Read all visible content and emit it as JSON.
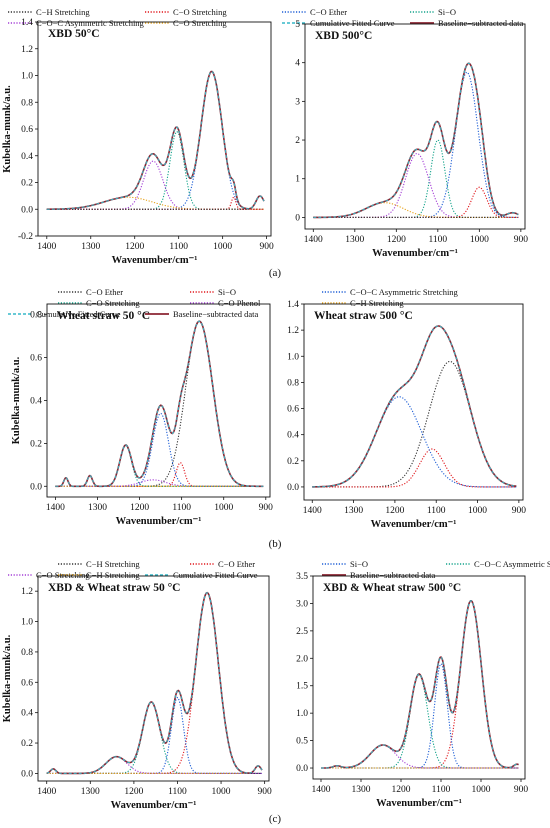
{
  "figure": {
    "captions": [
      "(a)",
      "(b)",
      "(c)"
    ]
  },
  "legends": [
    [
      {
        "label": "C−H Stretching",
        "color": "#333333",
        "dash": "1.2,1.6"
      },
      {
        "label": "C−O Stretching",
        "color": "#e0161b",
        "dash": "1.2,1.6"
      },
      {
        "label": "C−O Ether",
        "color": "#1f5fd6",
        "dash": "1.2,1.6"
      },
      {
        "label": "Si−O",
        "color": "#14a38b",
        "dash": "1.2,1.6"
      },
      {
        "label": "C−O−C Asymmetric Stretching",
        "color": "#a43fd6",
        "dash": "1.2,1.6"
      },
      {
        "label": "C−O Stretching",
        "color": "#e6a21a",
        "dash": "1.2,1.6"
      },
      {
        "label": "Cumulative Fitted Curve",
        "color": "#36b9c9",
        "dash": "3,2"
      },
      {
        "label": "Baseline−subtracted data",
        "color": "#8b2532",
        "dash": ""
      }
    ],
    [
      {
        "label": "C−O Ether",
        "color": "#333333",
        "dash": "1.2,1.6"
      },
      {
        "label": "Si−O",
        "color": "#e0161b",
        "dash": "1.2,1.6"
      },
      {
        "label": "C−O−C Asymmetric Stretching",
        "color": "#1f5fd6",
        "dash": "1.2,1.6"
      },
      {
        "label": "C−O Stretching",
        "color": "#14a38b",
        "dash": "1.2,1.6"
      },
      {
        "label": "C−O Phenol",
        "color": "#a43fd6",
        "dash": "1.2,1.6"
      },
      {
        "label": "C−H Stretching",
        "color": "#e6a21a",
        "dash": "1.2,1.6"
      },
      {
        "label": "Cumulative Fitted Curve",
        "color": "#36b9c9",
        "dash": "3,2"
      },
      {
        "label": "Baseline−subtracted data",
        "color": "#8b2532",
        "dash": ""
      }
    ],
    [
      {
        "label": "C−H Stretching",
        "color": "#333333",
        "dash": "1.2,1.6"
      },
      {
        "label": "C−O Ether",
        "color": "#e0161b",
        "dash": "1.2,1.6"
      },
      {
        "label": "Si−O",
        "color": "#1f5fd6",
        "dash": "1.2,1.6"
      },
      {
        "label": "C−O−C Asymmetric Stretching",
        "color": "#14a38b",
        "dash": "1.2,1.6"
      },
      {
        "label": "C−O Stretching",
        "color": "#a43fd6",
        "dash": "1.2,1.6"
      },
      {
        "label": "C−H Stretching",
        "color": "#e6a21a",
        "dash": "1.2,1.6"
      },
      {
        "label": "Cumulative Fitted Curve",
        "color": "#36b9c9",
        "dash": "3,2"
      },
      {
        "label": "Baseline−subtracted data",
        "color": "#8b2532",
        "dash": ""
      }
    ]
  ],
  "chart_data": [
    {
      "type": "line",
      "title": "XBD 50°C",
      "xlabel": "Wavenumber/cm⁻¹",
      "ylabel": "Kubelka-munk/a.u.",
      "xlim": [
        1420,
        890
      ],
      "xticks": [
        1400,
        1300,
        1200,
        1100,
        1000,
        900
      ],
      "ylim": [
        -0.2,
        1.4
      ],
      "yticks": [
        -0.2,
        0.0,
        0.2,
        0.4,
        0.6,
        0.8,
        1.0,
        1.2,
        1.4
      ],
      "peaks": [
        {
          "name": "C−O Ether",
          "center": 1025,
          "height": 1.03,
          "width": 24,
          "color": "#1f5fd6"
        },
        {
          "name": "Si−O",
          "center": 1104,
          "height": 0.58,
          "width": 16,
          "color": "#14a38b"
        },
        {
          "name": "C−O−C Asymmetric Stretching",
          "center": 1158,
          "height": 0.36,
          "width": 22,
          "color": "#a43fd6"
        },
        {
          "name": "C−O Stretching",
          "center": 1215,
          "height": 0.09,
          "width": 55,
          "color": "#e6a21a"
        },
        {
          "name": "C−O Stretching",
          "center": 975,
          "height": 0.09,
          "width": 5,
          "color": "#e0161b"
        },
        {
          "name": "C−H Stretching",
          "center": 915,
          "height": 0.1,
          "width": 9,
          "color": "#333333"
        }
      ],
      "baseline_shift": [
        1030,
        0.16,
        20
      ]
    },
    {
      "type": "line",
      "title": "XBD 500°C",
      "xlabel": "Wavenumber/cm⁻¹",
      "ylabel": "",
      "xlim": [
        1420,
        890
      ],
      "xticks": [
        1400,
        1300,
        1200,
        1100,
        1000,
        900
      ],
      "ylim": [
        -0.3,
        5
      ],
      "yticks": [
        0,
        1,
        2,
        3,
        4,
        5
      ],
      "peaks": [
        {
          "name": "C−O Ether",
          "center": 1030,
          "height": 3.75,
          "width": 27,
          "color": "#1f5fd6"
        },
        {
          "name": "Si−O",
          "center": 1100,
          "height": 2.0,
          "width": 17,
          "color": "#14a38b"
        },
        {
          "name": "C−O−C Asymmetric Stretching",
          "center": 1150,
          "height": 1.65,
          "width": 28,
          "color": "#a43fd6"
        },
        {
          "name": "C−O Stretching",
          "center": 1228,
          "height": 0.38,
          "width": 45,
          "color": "#e6a21a"
        },
        {
          "name": "C−O Stretching",
          "center": 1000,
          "height": 0.78,
          "width": 18,
          "color": "#e0161b"
        },
        {
          "name": "C−H Stretching",
          "center": 920,
          "height": 0.12,
          "width": 14,
          "color": "#333333"
        }
      ],
      "baseline_shift": [
        1030,
        0.25,
        20
      ]
    },
    {
      "type": "line",
      "title": "Wheat straw 50 °C",
      "xlabel": "Wavenumber/cm⁻¹",
      "ylabel": "Kubelka-munk/a.u.",
      "xlim": [
        1420,
        890
      ],
      "xticks": [
        1400,
        1300,
        1200,
        1100,
        1000,
        900
      ],
      "ylim": [
        -0.05,
        0.85
      ],
      "yticks": [
        0.0,
        0.2,
        0.4,
        0.6,
        0.8
      ],
      "peaks": [
        {
          "name": "C−O Ether",
          "center": 1058,
          "height": 0.77,
          "width": 32,
          "color": "#333333"
        },
        {
          "name": "Si−O",
          "center": 1103,
          "height": 0.11,
          "width": 10,
          "color": "#e0161b"
        },
        {
          "name": "C−O−C Asymmetric Stretching",
          "center": 1150,
          "height": 0.34,
          "width": 19,
          "color": "#1f5fd6"
        },
        {
          "name": "C−O Stretching",
          "center": 1233,
          "height": 0.19,
          "width": 14,
          "color": "#14a38b"
        },
        {
          "name": "C−O Phenol",
          "center": 1168,
          "height": 0.03,
          "width": 30,
          "color": "#a43fd6"
        },
        {
          "name": "C−H Stretching",
          "center": 1318,
          "height": 0.05,
          "width": 6,
          "color": "#e6a21a"
        },
        {
          "name": "C−H Stretching",
          "center": 1375,
          "height": 0.04,
          "width": 5,
          "color": "#e6a21a"
        }
      ],
      "baseline_shift": [
        1190,
        0.03,
        15
      ]
    },
    {
      "type": "line",
      "title": "Wheat straw 500 °C",
      "xlabel": "Wavenumber/cm⁻¹",
      "ylabel": "",
      "xlim": [
        1420,
        890
      ],
      "xticks": [
        1400,
        1300,
        1200,
        1100,
        1000,
        900
      ],
      "ylim": [
        -0.1,
        1.4
      ],
      "yticks": [
        0.0,
        0.2,
        0.4,
        0.6,
        0.8,
        1.0,
        1.2,
        1.4
      ],
      "peaks": [
        {
          "name": "C−O Ether",
          "center": 1067,
          "height": 0.96,
          "width": 50,
          "color": "#333333"
        },
        {
          "name": "Si−O",
          "center": 1110,
          "height": 0.29,
          "width": 30,
          "color": "#e0161b"
        },
        {
          "name": "C−O−C Asymmetric Stretching",
          "center": 1190,
          "height": 0.69,
          "width": 55,
          "color": "#1f5fd6"
        }
      ],
      "baseline_shift": [
        1100,
        0.0,
        30
      ]
    },
    {
      "type": "line",
      "title": "XBD & Wheat straw 50 °C",
      "xlabel": "Wavenumber/cm⁻¹",
      "ylabel": "Kubelka-munk/a.u.",
      "xlim": [
        1420,
        890
      ],
      "xticks": [
        1400,
        1300,
        1200,
        1100,
        1000,
        900
      ],
      "ylim": [
        -0.05,
        1.3
      ],
      "yticks": [
        0.0,
        0.2,
        0.4,
        0.6,
        0.8,
        1.0,
        1.2
      ],
      "peaks": [
        {
          "name": "C−O Ether",
          "center": 1032,
          "height": 1.19,
          "width": 26,
          "color": "#e0161b"
        },
        {
          "name": "Si−O",
          "center": 1100,
          "height": 0.5,
          "width": 14,
          "color": "#1f5fd6"
        },
        {
          "name": "C−O−C Asymmetric Stretching",
          "center": 1160,
          "height": 0.47,
          "width": 20,
          "color": "#14a38b"
        },
        {
          "name": "C−O Stretching",
          "center": 1240,
          "height": 0.11,
          "width": 24,
          "color": "#a43fd6"
        },
        {
          "name": "C−H Stretching",
          "center": 1385,
          "height": 0.03,
          "width": 6,
          "color": "#333333"
        },
        {
          "name": "C−H Stretching",
          "center": 915,
          "height": 0.05,
          "width": 7,
          "color": "#e6a21a"
        }
      ],
      "baseline_shift": [
        1060,
        0.05,
        25
      ]
    },
    {
      "type": "line",
      "title": "XBD & Wheat straw 500 °C",
      "xlabel": "Wavenumber/cm⁻¹",
      "ylabel": "",
      "xlim": [
        1420,
        890
      ],
      "xticks": [
        1400,
        1300,
        1200,
        1100,
        1000,
        900
      ],
      "ylim": [
        -0.2,
        3.5
      ],
      "yticks": [
        0.0,
        0.5,
        1.0,
        1.5,
        2.0,
        2.5,
        3.0,
        3.5
      ],
      "peaks": [
        {
          "name": "C−O Ether",
          "center": 1025,
          "height": 3.05,
          "width": 26,
          "color": "#e0161b"
        },
        {
          "name": "Si−O",
          "center": 1100,
          "height": 1.9,
          "width": 16,
          "color": "#1f5fd6"
        },
        {
          "name": "C−O−C Asymmetric Stretching",
          "center": 1155,
          "height": 1.7,
          "width": 22,
          "color": "#14a38b"
        },
        {
          "name": "C−O Stretching",
          "center": 1245,
          "height": 0.42,
          "width": 32,
          "color": "#a43fd6"
        },
        {
          "name": "C−H Stretching",
          "center": 1360,
          "height": 0.04,
          "width": 10,
          "color": "#333333"
        },
        {
          "name": "C−H Stretching",
          "center": 910,
          "height": 0.07,
          "width": 8,
          "color": "#e6a21a"
        }
      ],
      "baseline_shift": [
        1040,
        0.1,
        30
      ]
    }
  ]
}
